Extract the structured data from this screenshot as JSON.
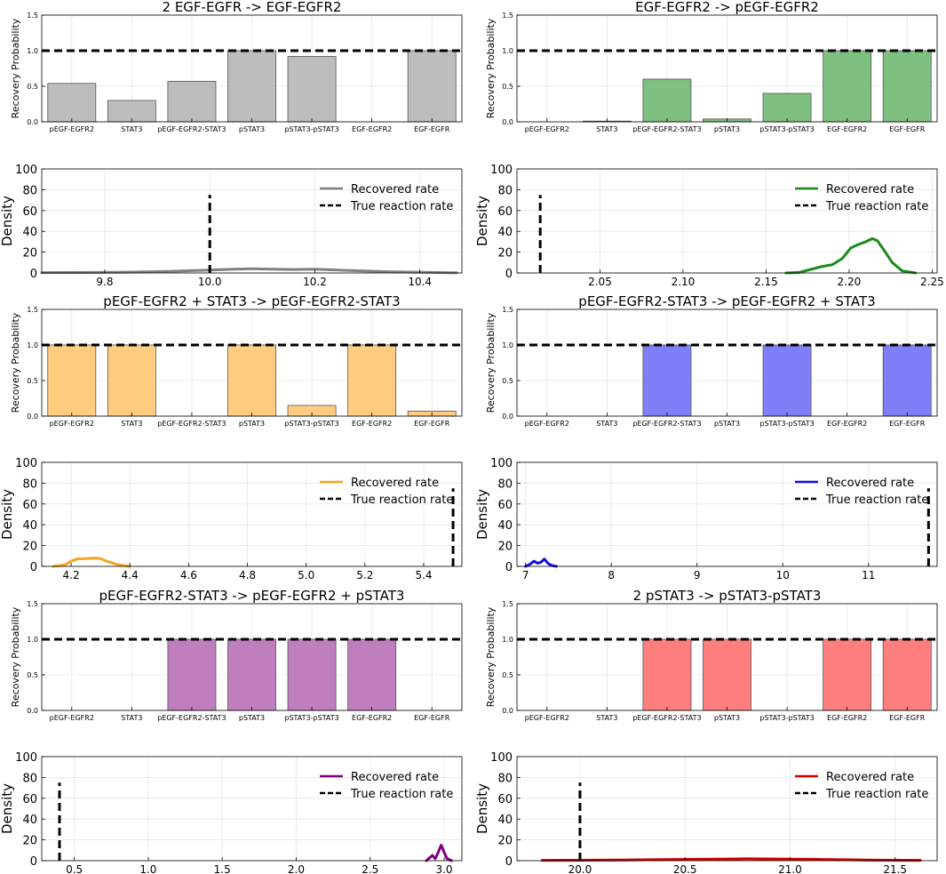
{
  "figure": {
    "bar_ylabel": "Recovery Probability",
    "density_ylabel": "Density",
    "legend_recovered": "Recovered rate",
    "legend_true": "True reaction rate"
  },
  "chart_data": [
    {
      "type": "bar",
      "title": "2 EGF-EGFR -> EGF-EGFR2",
      "categories": [
        "pEGF-EGFR2",
        "STAT3",
        "pEGF-EGFR2-STAT3",
        "pSTAT3",
        "pSTAT3-pSTAT3",
        "EGF-EGFR2",
        "EGF-EGFR"
      ],
      "values": [
        0.54,
        0.3,
        0.57,
        1.0,
        0.92,
        0.0,
        1.0
      ],
      "ylim": [
        0,
        1.5
      ],
      "yticks": [
        0.0,
        0.5,
        1.0,
        1.5
      ],
      "reference_line": 1.0,
      "color": "#bdbdbd",
      "ylabel": "Recovery Probability"
    },
    {
      "type": "bar",
      "title": "EGF-EGFR2 -> pEGF-EGFR2",
      "categories": [
        "pEGF-EGFR2",
        "STAT3",
        "pEGF-EGFR2-STAT3",
        "pSTAT3",
        "pSTAT3-pSTAT3",
        "EGF-EGFR2",
        "EGF-EGFR"
      ],
      "values": [
        0.0,
        0.01,
        0.6,
        0.04,
        0.4,
        1.0,
        1.0
      ],
      "ylim": [
        0,
        1.5
      ],
      "yticks": [
        0.0,
        0.5,
        1.0,
        1.5
      ],
      "reference_line": 1.0,
      "color": "#7fbf7f",
      "ylabel": "Recovery Probability"
    },
    {
      "type": "line",
      "title": "",
      "xlim": [
        9.68,
        10.48
      ],
      "xticks": [
        9.8,
        10.0,
        10.2,
        10.4
      ],
      "ylim": [
        0,
        100
      ],
      "yticks": [
        0,
        20,
        40,
        60,
        80,
        100
      ],
      "true_rate": 10.0,
      "true_line_height": 75,
      "series": [
        {
          "name": "Recovered rate",
          "color": "#808080",
          "x": [
            9.68,
            9.76,
            9.84,
            9.92,
            9.98,
            10.04,
            10.08,
            10.12,
            10.16,
            10.2,
            10.26,
            10.34,
            10.42,
            10.47
          ],
          "y": [
            0.3,
            0.4,
            0.8,
            1.5,
            2.5,
            3.5,
            4.0,
            3.6,
            3.3,
            3.6,
            2.5,
            1.2,
            0.5,
            0.2
          ]
        }
      ],
      "xlabel": "",
      "ylabel": "Density"
    },
    {
      "type": "line",
      "title": "",
      "xlim": [
        2.0,
        2.253
      ],
      "xticks": [
        2.05,
        2.1,
        2.15,
        2.2,
        2.25
      ],
      "ylim": [
        0,
        100
      ],
      "yticks": [
        0,
        20,
        40,
        60,
        80,
        100
      ],
      "true_rate": 2.014,
      "true_line_height": 75,
      "series": [
        {
          "name": "Recovered rate",
          "color": "#1a8a1a",
          "x": [
            2.162,
            2.17,
            2.176,
            2.183,
            2.19,
            2.196,
            2.201,
            2.205,
            2.21,
            2.214,
            2.217,
            2.221,
            2.226,
            2.232,
            2.24
          ],
          "y": [
            0,
            0.5,
            3,
            6,
            8,
            14,
            24,
            27,
            30,
            33,
            31,
            22,
            10,
            2,
            0
          ]
        }
      ],
      "xlabel": "",
      "ylabel": "Density"
    },
    {
      "type": "bar",
      "title": "pEGF-EGFR2 + STAT3 -> pEGF-EGFR2-STAT3",
      "categories": [
        "pEGF-EGFR2",
        "STAT3",
        "pEGF-EGFR2-STAT3",
        "pSTAT3",
        "pSTAT3-pSTAT3",
        "EGF-EGFR2",
        "EGF-EGFR"
      ],
      "values": [
        1.0,
        1.0,
        0.0,
        1.0,
        0.15,
        1.0,
        0.07
      ],
      "ylim": [
        0,
        1.5
      ],
      "yticks": [
        0.0,
        0.5,
        1.0,
        1.5
      ],
      "reference_line": 1.0,
      "color": "#ffcc80",
      "ylabel": "Recovery Probability"
    },
    {
      "type": "bar",
      "title": "pEGF-EGFR2-STAT3 -> pEGF-EGFR2 + STAT3",
      "categories": [
        "pEGF-EGFR2",
        "STAT3",
        "pEGF-EGFR2-STAT3",
        "pSTAT3",
        "pSTAT3-pSTAT3",
        "EGF-EGFR2",
        "EGF-EGFR"
      ],
      "values": [
        0.0,
        0.0,
        1.0,
        0.0,
        1.0,
        0.0,
        1.0
      ],
      "ylim": [
        0,
        1.5
      ],
      "yticks": [
        0.0,
        0.5,
        1.0,
        1.5
      ],
      "reference_line": 1.0,
      "color": "#7f7ff7",
      "ylabel": "Recovery Probability"
    },
    {
      "type": "line",
      "title": "",
      "xlim": [
        4.1,
        5.53
      ],
      "xticks": [
        4.2,
        4.4,
        4.6,
        4.8,
        5.0,
        5.2,
        5.4
      ],
      "ylim": [
        0,
        100
      ],
      "yticks": [
        0,
        20,
        40,
        60,
        80,
        100
      ],
      "true_rate": 5.5,
      "true_line_height": 75,
      "series": [
        {
          "name": "Recovered rate",
          "color": "#f5a623",
          "x": [
            4.14,
            4.18,
            4.2,
            4.22,
            4.25,
            4.28,
            4.3,
            4.32,
            4.36,
            4.4
          ],
          "y": [
            0,
            1.5,
            5,
            7,
            7.5,
            8,
            7.5,
            5,
            1.5,
            0
          ]
        }
      ],
      "xlabel": "",
      "ylabel": "Density"
    },
    {
      "type": "line",
      "title": "",
      "xlim": [
        6.9,
        11.8
      ],
      "xticks": [
        7,
        8,
        9,
        10,
        11
      ],
      "ylim": [
        0,
        100
      ],
      "yticks": [
        0,
        20,
        40,
        60,
        80,
        100
      ],
      "true_rate": 11.7,
      "true_line_height": 75,
      "series": [
        {
          "name": "Recovered rate",
          "color": "#1010e0",
          "x": [
            7.0,
            7.05,
            7.1,
            7.14,
            7.18,
            7.22,
            7.26,
            7.3,
            7.36
          ],
          "y": [
            0,
            2,
            5,
            3,
            4,
            7,
            3,
            1,
            0
          ]
        }
      ],
      "xlabel": "",
      "ylabel": "Density"
    },
    {
      "type": "bar",
      "title": "pEGF-EGFR2-STAT3 -> pEGF-EGFR2 + pSTAT3",
      "categories": [
        "pEGF-EGFR2",
        "STAT3",
        "pEGF-EGFR2-STAT3",
        "pSTAT3",
        "pSTAT3-pSTAT3",
        "EGF-EGFR2",
        "EGF-EGFR"
      ],
      "values": [
        0.0,
        0.0,
        1.0,
        1.0,
        1.0,
        1.0,
        0.0
      ],
      "ylim": [
        0,
        1.5
      ],
      "yticks": [
        0.0,
        0.5,
        1.0,
        1.5
      ],
      "reference_line": 1.0,
      "color": "#bf7fbf",
      "ylabel": "Recovery Probability"
    },
    {
      "type": "bar",
      "title": "2 pSTAT3 -> pSTAT3-pSTAT3",
      "categories": [
        "pEGF-EGFR2",
        "STAT3",
        "pEGF-EGFR2-STAT3",
        "pSTAT3",
        "pSTAT3-pSTAT3",
        "EGF-EGFR2",
        "EGF-EGFR"
      ],
      "values": [
        0.0,
        0.0,
        1.0,
        1.0,
        0.0,
        1.0,
        1.0
      ],
      "ylim": [
        0,
        1.5
      ],
      "yticks": [
        0.0,
        0.5,
        1.0,
        1.5
      ],
      "reference_line": 1.0,
      "color": "#ff7f7f",
      "ylabel": "Recovery Probability"
    },
    {
      "type": "line",
      "title": "",
      "xlim": [
        0.28,
        3.12
      ],
      "xticks": [
        0.5,
        1.0,
        1.5,
        2.0,
        2.5,
        3.0
      ],
      "ylim": [
        0,
        100
      ],
      "yticks": [
        0,
        20,
        40,
        60,
        80,
        100
      ],
      "true_rate": 0.4,
      "true_line_height": 75,
      "series": [
        {
          "name": "Recovered rate",
          "color": "#800080",
          "x": [
            2.88,
            2.92,
            2.94,
            2.96,
            2.98,
            3.0,
            3.02,
            3.05
          ],
          "y": [
            0,
            5,
            2,
            8,
            15,
            8,
            2,
            0
          ]
        }
      ],
      "xlabel": "",
      "ylabel": "Density"
    },
    {
      "type": "line",
      "title": "",
      "xlim": [
        19.7,
        21.7
      ],
      "xticks": [
        20.0,
        20.5,
        21.0,
        21.5
      ],
      "ylim": [
        0,
        100
      ],
      "yticks": [
        0,
        20,
        40,
        60,
        80,
        100
      ],
      "true_rate": 20.0,
      "true_line_height": 75,
      "series": [
        {
          "name": "Recovered rate",
          "color": "#d00000",
          "x": [
            19.82,
            20.0,
            20.2,
            20.4,
            20.6,
            20.8,
            21.0,
            21.2,
            21.4,
            21.62
          ],
          "y": [
            0.3,
            0.4,
            0.6,
            1.0,
            1.4,
            1.8,
            1.5,
            1.0,
            0.5,
            0.3
          ]
        }
      ],
      "xlabel": "",
      "ylabel": "Density"
    }
  ]
}
